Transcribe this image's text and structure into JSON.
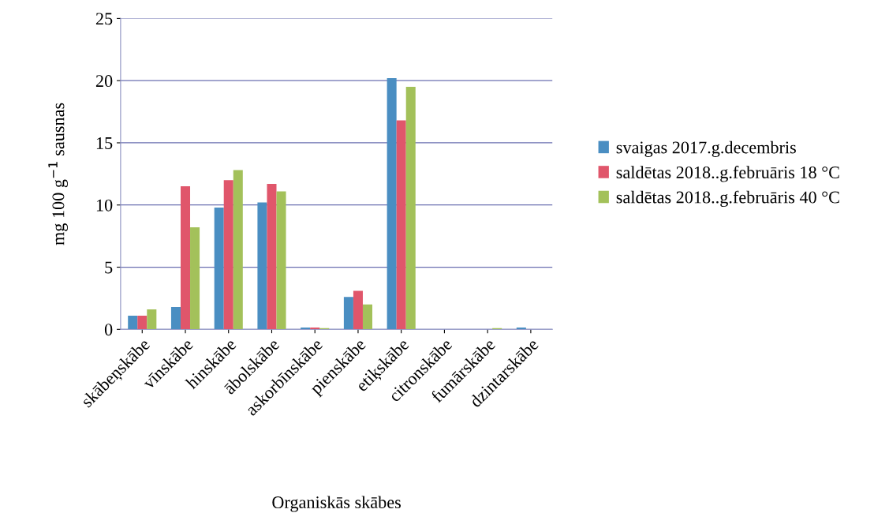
{
  "chart_data": {
    "type": "bar",
    "xlabel": "Organiskās skābes",
    "ylabel": "mg 100 g$^{−1}$ sausnas",
    "categories": [
      "skābeņskābe",
      "vīnskābe",
      "hinskābe",
      "ābolskābe",
      "askorbīnskābe",
      "pienskābe",
      "etiķskābe",
      "citronskābe",
      "fumārskābe",
      "dzintarskābe"
    ],
    "series": [
      {
        "name": "svaigas 2017.g.decembris",
        "color": "#4a8ec2",
        "values": [
          1.1,
          1.8,
          9.8,
          10.2,
          0.15,
          2.6,
          20.2,
          0,
          0,
          0.15
        ]
      },
      {
        "name": "saldētas 2018..g.februāris 18 °C",
        "color": "#e0566b",
        "values": [
          1.1,
          11.5,
          12.0,
          11.7,
          0.15,
          3.1,
          16.8,
          0,
          0,
          0
        ]
      },
      {
        "name": "saldētas 2018..g.februāris 40 °C",
        "color": "#a3c15a",
        "values": [
          1.6,
          8.2,
          12.8,
          11.1,
          0.1,
          2.0,
          19.5,
          0,
          0.1,
          0
        ]
      }
    ],
    "ylim": [
      0,
      25
    ],
    "yticks": [
      0,
      5,
      10,
      15,
      20,
      25
    ],
    "grid": "y",
    "legend": "right"
  }
}
